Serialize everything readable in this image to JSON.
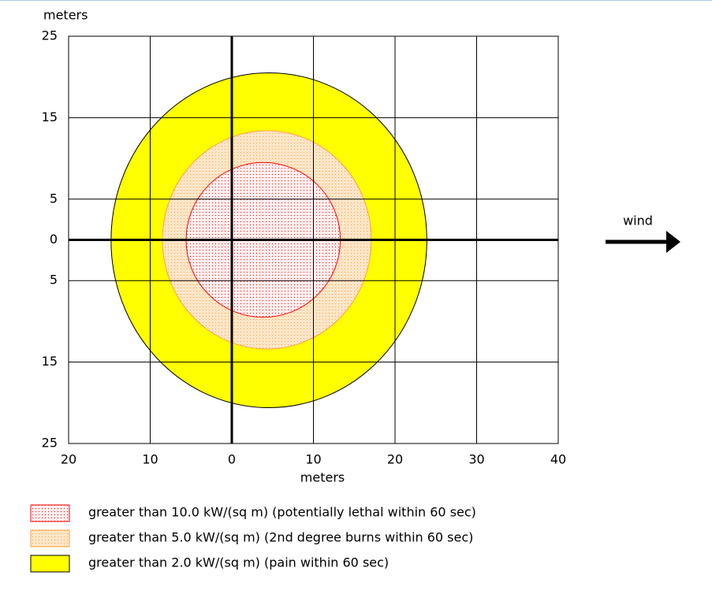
{
  "chart_data": {
    "type": "threat-zone",
    "ylabel": "meters",
    "xlabel": "meters",
    "wind_label": "wind",
    "xlim": [
      -20,
      40
    ],
    "ylim": [
      -25,
      25
    ],
    "xticks": [
      {
        "value": -20,
        "label": "20"
      },
      {
        "value": -10,
        "label": "10"
      },
      0,
      10,
      20,
      30,
      40
    ],
    "yticks": [
      25,
      15,
      5,
      0,
      {
        "value": -5,
        "label": "5"
      },
      {
        "value": -15,
        "label": "15"
      },
      {
        "value": -25,
        "label": "25"
      }
    ],
    "grid": true,
    "series": [
      {
        "name": "greater than 10.0 kW/(sq m) (potentially lethal within 60 sec)",
        "color": "#ff0000",
        "fill": "#fff0f0",
        "pattern": "dots",
        "xrange": [
          -5.6,
          13.3
        ],
        "yrange": [
          -9.5,
          9.5
        ]
      },
      {
        "name": "greater than 5.0 kW/(sq m) (2nd degree burns within 60 sec)",
        "color": "#ffa040",
        "fill": "#fde6c8",
        "pattern": "dots",
        "xrange": [
          -8.5,
          17.1
        ],
        "yrange": [
          -13.4,
          13.4
        ]
      },
      {
        "name": "greater than 2.0 kW/(sq m) (pain within 60 sec)",
        "color": "#000000",
        "fill": "#ffff00",
        "pattern": "solid",
        "xrange": [
          -14.8,
          23.9
        ],
        "yrange": [
          -20.6,
          20.5
        ]
      }
    ]
  }
}
